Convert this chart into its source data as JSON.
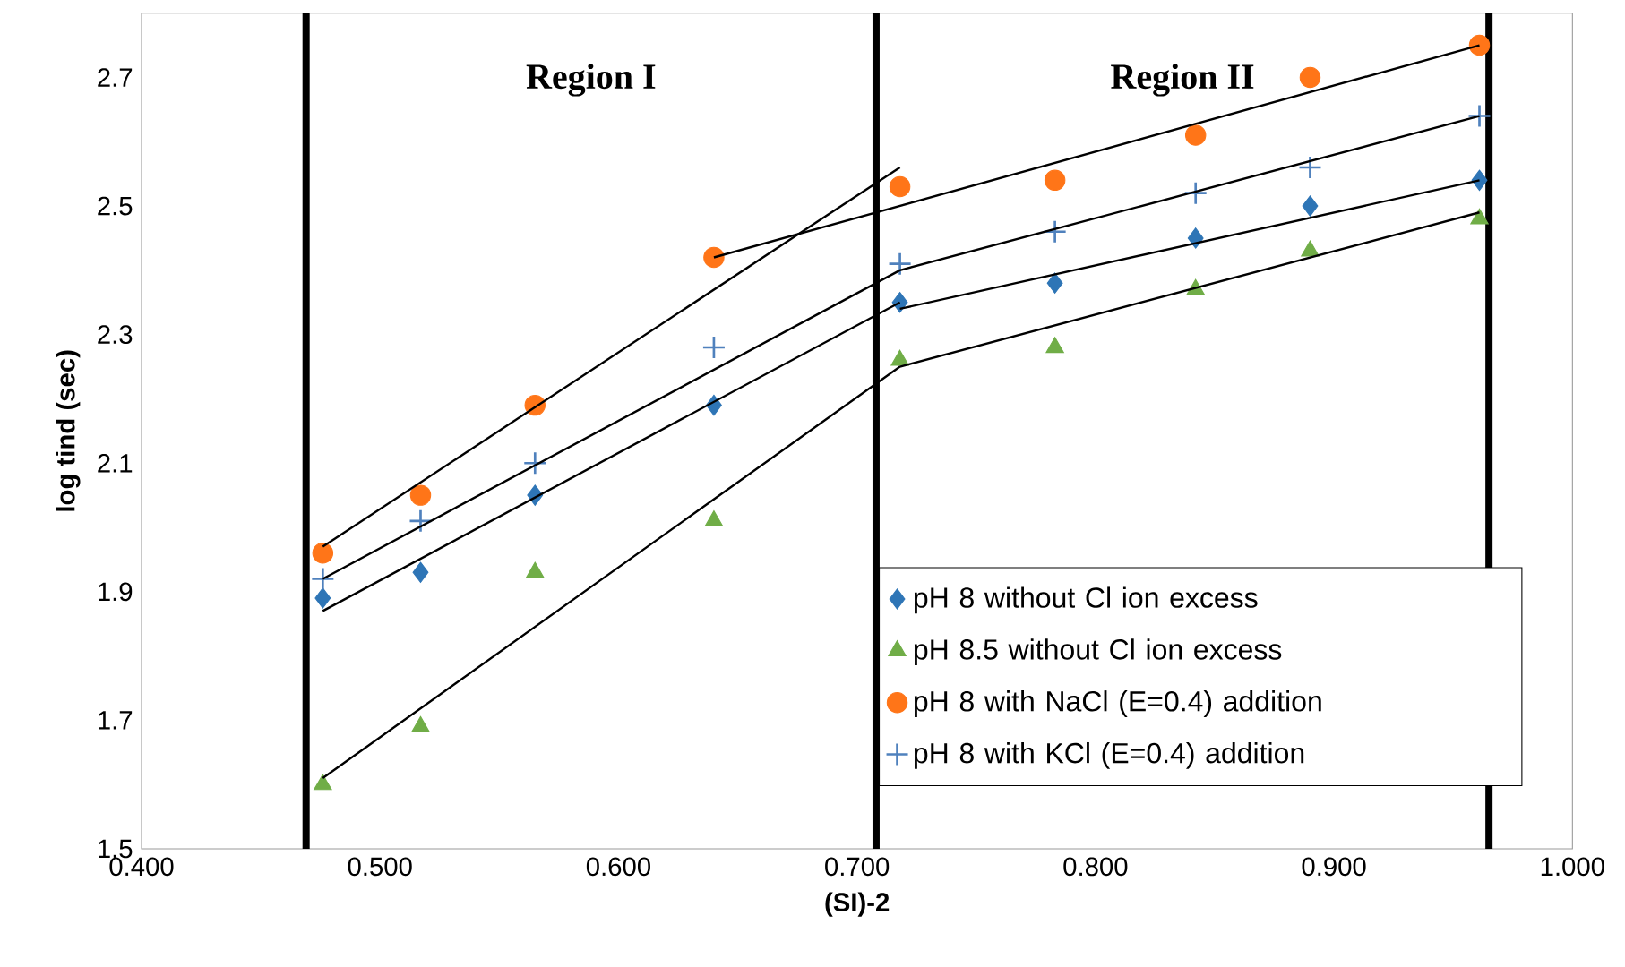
{
  "chart_data": {
    "type": "scatter",
    "xlabel": "(SI)-2",
    "ylabel": "log tind (sec)",
    "xlim": [
      0.4,
      1.0
    ],
    "ylim": [
      1.5,
      2.8
    ],
    "xticks": [
      {
        "value": 0.4,
        "label": "0.400"
      },
      {
        "value": 0.5,
        "label": "0.500"
      },
      {
        "value": 0.6,
        "label": "0.600"
      },
      {
        "value": 0.7,
        "label": "0.700"
      },
      {
        "value": 0.8,
        "label": "0.800"
      },
      {
        "value": 0.9,
        "label": "0.900"
      },
      {
        "value": 1.0,
        "label": "1.000"
      }
    ],
    "yticks": [
      1.5,
      1.7,
      1.9,
      2.1,
      2.3,
      2.5,
      2.7
    ],
    "x": [
      0.476,
      0.517,
      0.565,
      0.64,
      0.718,
      0.783,
      0.842,
      0.89,
      0.961
    ],
    "series": [
      {
        "name": "pH 8 without Cl ion excess",
        "color": "#2e75b6",
        "marker": "diamond",
        "values": [
          1.89,
          1.93,
          2.05,
          2.19,
          2.35,
          2.38,
          2.45,
          2.5,
          2.54
        ]
      },
      {
        "name": "pH 8.5 without Cl ion excess",
        "color": "#70ad47",
        "marker": "triangle",
        "values": [
          1.6,
          1.69,
          1.93,
          2.01,
          2.26,
          2.28,
          2.37,
          2.43,
          2.48
        ]
      },
      {
        "name": "pH 8 with NaCl (E=0.4) addition",
        "color": "#ff7518",
        "marker": "circle",
        "values": [
          1.96,
          2.05,
          2.19,
          2.42,
          2.53,
          2.54,
          2.61,
          2.7,
          2.75
        ]
      },
      {
        "name": "pH 8 with KCl (E=0.4) addition",
        "color": "#4f81bd",
        "marker": "cross",
        "values": [
          1.92,
          2.01,
          2.1,
          2.28,
          2.41,
          2.46,
          2.52,
          2.56,
          2.64
        ]
      },
      {
        "type": "line",
        "color": "#000000",
        "x": [
          0.476,
          0.718
        ],
        "values": [
          1.97,
          2.56
        ]
      },
      {
        "type": "line",
        "color": "#000000",
        "x": [
          0.64,
          0.961
        ],
        "values": [
          2.42,
          2.75
        ]
      },
      {
        "type": "line",
        "color": "#000000",
        "x": [
          0.476,
          0.718,
          0.961
        ],
        "values": [
          1.92,
          2.4,
          2.64
        ]
      },
      {
        "type": "line",
        "color": "#000000",
        "x": [
          0.476,
          0.718
        ],
        "values": [
          1.87,
          2.35
        ]
      },
      {
        "type": "line",
        "color": "#000000",
        "x": [
          0.718,
          0.961
        ],
        "values": [
          2.34,
          2.54
        ]
      },
      {
        "type": "line",
        "color": "#000000",
        "x": [
          0.476,
          0.718,
          0.961
        ],
        "values": [
          1.61,
          2.25,
          2.49
        ]
      }
    ],
    "ref_lines": [
      {
        "axis": "x",
        "value": 0.469,
        "color": "#000000"
      },
      {
        "axis": "x",
        "value": 0.708,
        "color": "#000000"
      },
      {
        "axis": "x",
        "value": 0.965,
        "color": "#000000"
      }
    ],
    "annotations": [
      "Region I",
      "Region II"
    ],
    "legend": "bottom right"
  }
}
